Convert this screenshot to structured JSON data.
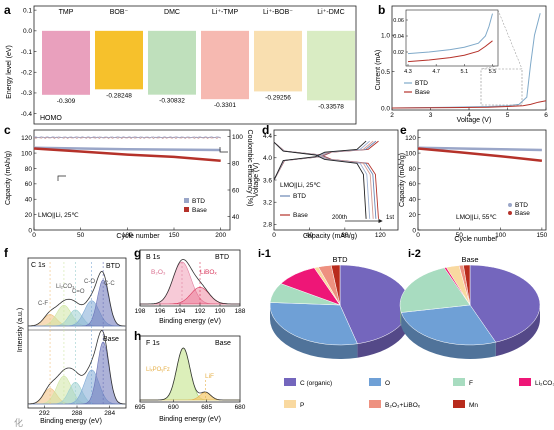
{
  "colors": {
    "btd": "#6b87b5",
    "base": "#b5322a",
    "btd_light": "#7fa9c9",
    "ce_btd": "#9aa6c8",
    "ce_base": "#c98e8a"
  },
  "panels": {
    "a": {
      "letter": "a",
      "ylabel": "Energy level (eV)",
      "homo": "HOMO",
      "categories": [
        "TMP",
        "BOB⁻",
        "DMC",
        "Li⁺-TMP",
        "Li⁺-BOB⁻",
        "Li⁺-DMC"
      ],
      "values": [
        -0.309,
        -0.28248,
        -0.30832,
        -0.3301,
        -0.29256,
        -0.33578
      ],
      "labels": [
        "-0.309",
        "-0.28248",
        "-0.30832",
        "-0.3301",
        "-0.29256",
        "-0.33578"
      ],
      "bar_colors": [
        "#e9a0bd",
        "#f6c12c",
        "#bfe0bc",
        "#f6b9b1",
        "#f9dfb0",
        "#d9ecc3"
      ],
      "yticks": [
        "0.1",
        "0.0",
        "-0.1",
        "-0.2",
        "-0.3",
        "-0.4"
      ],
      "ylim": [
        -0.45,
        0.12
      ]
    },
    "b": {
      "letter": "b",
      "xlabel": "Voltage (V)",
      "ylabel": "Current (mA)",
      "xticks": [
        "2",
        "3",
        "4",
        "5",
        "6"
      ],
      "yticks": [
        "0.0",
        "0.5",
        "1.0"
      ],
      "legend": [
        "BTD",
        "Base"
      ],
      "inset": {
        "xticks": [
          "4.3",
          "4.7",
          "5.1",
          "5.5"
        ],
        "yticks": [
          "0.02",
          "0.04",
          "0.06"
        ],
        "btd": [
          [
            4.3,
            0.018
          ],
          [
            4.6,
            0.02
          ],
          [
            4.9,
            0.023
          ],
          [
            5.1,
            0.026
          ],
          [
            5.3,
            0.031
          ],
          [
            5.4,
            0.04
          ],
          [
            5.45,
            0.052
          ],
          [
            5.5,
            0.068
          ]
        ],
        "base": [
          [
            4.3,
            0.008
          ],
          [
            4.6,
            0.01
          ],
          [
            4.9,
            0.013
          ],
          [
            5.1,
            0.016
          ],
          [
            5.3,
            0.021
          ],
          [
            5.4,
            0.027
          ],
          [
            5.5,
            0.034
          ]
        ]
      },
      "btd": [
        [
          2,
          0.0
        ],
        [
          3.5,
          0.01
        ],
        [
          4.5,
          0.02
        ],
        [
          5.0,
          0.03
        ],
        [
          5.3,
          0.05
        ],
        [
          5.5,
          0.15
        ],
        [
          5.6,
          0.6
        ],
        [
          5.7,
          1.0
        ],
        [
          5.85,
          1.3
        ]
      ],
      "base": [
        [
          2,
          0.0
        ],
        [
          3.5,
          0.005
        ],
        [
          4.5,
          0.01
        ],
        [
          5.0,
          0.02
        ],
        [
          5.4,
          0.03
        ],
        [
          5.6,
          0.05
        ],
        [
          5.8,
          0.08
        ],
        [
          6,
          0.1
        ]
      ]
    },
    "c": {
      "letter": "c",
      "xlabel": "Cycle number",
      "ylabel": "Capacity (mAh/g)",
      "ylabel2": "Coulombic efficiency (%)",
      "xticks": [
        "0",
        "50",
        "100",
        "150",
        "200"
      ],
      "yticks": [
        "0",
        "20",
        "40",
        "60",
        "80",
        "100",
        "120"
      ],
      "y2ticks": [
        "40",
        "60",
        "80",
        "100"
      ],
      "note": "LMO||Li, 25℃",
      "legend": [
        "BTD",
        "Base"
      ],
      "btd": [
        [
          0,
          107
        ],
        [
          50,
          106
        ],
        [
          100,
          105
        ],
        [
          150,
          104.5
        ],
        [
          200,
          104
        ]
      ],
      "base": [
        [
          0,
          106
        ],
        [
          50,
          102
        ],
        [
          100,
          98
        ],
        [
          150,
          95
        ],
        [
          200,
          90
        ]
      ]
    },
    "d": {
      "letter": "d",
      "xlabel": "Capacity (mAh/g)",
      "ylabel": "Voltage (V)",
      "xticks": [
        "0",
        "40",
        "80",
        "120"
      ],
      "yticks": [
        "2.8",
        "3.2",
        "3.6",
        "4.0",
        "4.4"
      ],
      "note": "LMO||Li, 25℃",
      "legend": [
        "BTD",
        "Base"
      ],
      "cycle_first": "1st",
      "cycle_last": "200th"
    },
    "e": {
      "letter": "e",
      "xlabel": "Cycle number",
      "ylabel": "Capacity (mAh/g)",
      "xticks": [
        "0",
        "50",
        "100",
        "150"
      ],
      "yticks": [
        "0",
        "20",
        "40",
        "60",
        "80",
        "100",
        "120"
      ],
      "note": "LMO||Li, 55℃",
      "legend": [
        "BTD",
        "Base"
      ],
      "btd": [
        [
          0,
          107
        ],
        [
          50,
          106
        ],
        [
          100,
          105
        ],
        [
          150,
          104
        ]
      ],
      "base": [
        [
          0,
          106
        ],
        [
          50,
          101
        ],
        [
          100,
          96
        ],
        [
          150,
          90
        ]
      ]
    },
    "f": {
      "letter": "f",
      "title": "C 1s",
      "xlabel": "Binding energy (eV)",
      "ylabel": "Intensity (a.u.)",
      "xticks": [
        "292",
        "288",
        "284"
      ],
      "top": "BTD",
      "bottom": "Base",
      "peaks": [
        "C-F",
        "Li₂CO₃",
        "C=O",
        "C-O",
        "C-C"
      ]
    },
    "g": {
      "letter": "g",
      "title": "B 1s",
      "sample": "BTD",
      "xlabel": "Binding energy (eV)",
      "xticks": [
        "198",
        "196",
        "194",
        "192",
        "190",
        "188"
      ],
      "peak1": "B₂O₃",
      "peak2": "LiBOₓ"
    },
    "h": {
      "letter": "h",
      "title": "F 1s",
      "sample": "Base",
      "xlabel": "Binding energy (eV)",
      "xticks": [
        "695",
        "690",
        "685",
        "680"
      ],
      "peak1": "LiₓPOᵧFz",
      "peak2": "LiF"
    },
    "i": {
      "letter1": "i-1",
      "letter2": "i-2",
      "title1": "BTD",
      "title2": "Base",
      "legend": [
        {
          "name": "C (organic)",
          "color": "#7466bd"
        },
        {
          "name": "O",
          "color": "#6fa0d6"
        },
        {
          "name": "F",
          "color": "#a8dcc0"
        },
        {
          "name": "Li₂CO₃",
          "color": "#ee1677"
        },
        {
          "name": "P",
          "color": "#f9d9a0"
        },
        {
          "name": "B₂O₃+LiBOₓ",
          "color": "#ee9180"
        },
        {
          "name": "Mn",
          "color": "#b82b1d"
        }
      ],
      "pie_btd": [
        46,
        30,
        8,
        10,
        1,
        3,
        2
      ],
      "pie_base": [
        44,
        28,
        22,
        0.5,
        3,
        1,
        1.5
      ]
    }
  },
  "watermark": "化"
}
